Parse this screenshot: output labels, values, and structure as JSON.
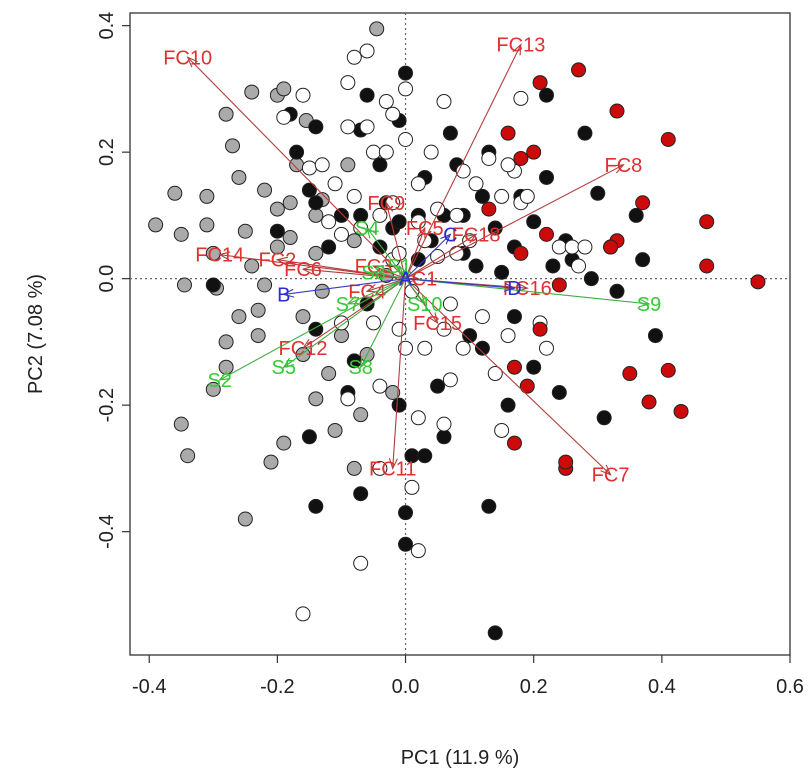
{
  "chart_data": {
    "type": "scatter",
    "title": "",
    "xlabel": "PC1 (11.9 %)",
    "ylabel": "PC2 (7.08 %)",
    "xlim": [
      -0.43,
      0.6
    ],
    "ylim": [
      -0.595,
      0.42
    ],
    "xticks": [
      "-0.4",
      "-0.2",
      "0.0",
      "0.2",
      "0.4",
      "0.6"
    ],
    "xtick_values": [
      -0.4,
      -0.2,
      0.0,
      0.2,
      0.4,
      0.6
    ],
    "yticks": [
      "-0.4",
      "-0.2",
      "0.0",
      "0.2",
      "0.4"
    ],
    "ytick_values": [
      -0.4,
      -0.2,
      0.0,
      0.2,
      0.4
    ],
    "reference_lines": {
      "x": 0,
      "y": 0,
      "style": "dotted"
    },
    "colors": {
      "grey": "#aaaaaa",
      "black": "#111111",
      "white": "#ffffff",
      "red": "#cc0a0a",
      "fc_arrow": "#b33c3c",
      "fc_label": "#e03030",
      "s_arrow": "#40b040",
      "s_label": "#33cc33",
      "class_arrow": "#3a3ac0",
      "class_label": "#2a2ad8"
    },
    "series": [
      {
        "color": "grey",
        "points": [
          [
            -0.39,
            0.085
          ],
          [
            -0.36,
            0.135
          ],
          [
            -0.35,
            0.07
          ],
          [
            -0.345,
            -0.01
          ],
          [
            -0.35,
            -0.23
          ],
          [
            -0.34,
            -0.28
          ],
          [
            -0.31,
            0.13
          ],
          [
            -0.31,
            0.085
          ],
          [
            -0.3,
            0.04
          ],
          [
            -0.295,
            -0.015
          ],
          [
            -0.3,
            -0.175
          ],
          [
            -0.28,
            -0.1
          ],
          [
            -0.28,
            -0.14
          ],
          [
            -0.28,
            0.26
          ],
          [
            -0.27,
            0.21
          ],
          [
            -0.26,
            0.16
          ],
          [
            -0.26,
            -0.06
          ],
          [
            -0.25,
            -0.38
          ],
          [
            -0.24,
            0.295
          ],
          [
            -0.25,
            0.075
          ],
          [
            -0.24,
            0.02
          ],
          [
            -0.23,
            -0.05
          ],
          [
            -0.23,
            -0.09
          ],
          [
            -0.22,
            0.14
          ],
          [
            -0.2,
            0.29
          ],
          [
            -0.2,
            0.11
          ],
          [
            -0.2,
            0.05
          ],
          [
            -0.19,
            0.3
          ],
          [
            -0.18,
            0.065
          ],
          [
            -0.17,
            0.18
          ],
          [
            -0.16,
            -0.06
          ],
          [
            -0.155,
            0.25
          ],
          [
            -0.14,
            -0.19
          ],
          [
            -0.14,
            0.04
          ],
          [
            -0.13,
            0.125
          ],
          [
            -0.13,
            -0.02
          ],
          [
            -0.12,
            -0.15
          ],
          [
            -0.11,
            -0.24
          ],
          [
            -0.1,
            -0.09
          ],
          [
            -0.09,
            0.18
          ],
          [
            -0.08,
            0.06
          ],
          [
            -0.07,
            -0.215
          ],
          [
            -0.06,
            -0.12
          ],
          [
            -0.045,
            0.395
          ],
          [
            -0.19,
            -0.26
          ],
          [
            -0.21,
            -0.29
          ],
          [
            -0.02,
            -0.18
          ],
          [
            -0.14,
            0.1
          ],
          [
            -0.18,
            0.12
          ],
          [
            -0.22,
            -0.01
          ],
          [
            -0.16,
            -0.12
          ],
          [
            -0.08,
            -0.3
          ],
          [
            -0.03,
            0.005
          ]
        ]
      },
      {
        "color": "black",
        "points": [
          [
            -0.3,
            -0.01
          ],
          [
            -0.18,
            0.26
          ],
          [
            -0.17,
            0.2
          ],
          [
            -0.15,
            0.14
          ],
          [
            -0.14,
            0.24
          ],
          [
            -0.14,
            0.12
          ],
          [
            -0.15,
            -0.25
          ],
          [
            -0.14,
            -0.08
          ],
          [
            -0.1,
            0.1
          ],
          [
            -0.09,
            -0.18
          ],
          [
            -0.07,
            0.235
          ],
          [
            -0.07,
            0.1
          ],
          [
            -0.08,
            -0.13
          ],
          [
            -0.06,
            0.29
          ],
          [
            -0.04,
            0.18
          ],
          [
            -0.03,
            0.12
          ],
          [
            -0.02,
            0.08
          ],
          [
            -0.01,
            0.25
          ],
          [
            -0.01,
            0.09
          ],
          [
            0.0,
            0.325
          ],
          [
            -0.01,
            -0.2
          ],
          [
            0.0,
            -0.37
          ],
          [
            0.01,
            -0.28
          ],
          [
            0.02,
            0.1
          ],
          [
            0.03,
            0.16
          ],
          [
            0.04,
            0.06
          ],
          [
            0.05,
            -0.17
          ],
          [
            0.06,
            0.1
          ],
          [
            0.07,
            0.23
          ],
          [
            0.09,
            0.04
          ],
          [
            0.1,
            -0.09
          ],
          [
            0.11,
            0.02
          ],
          [
            0.12,
            0.13
          ],
          [
            0.13,
            -0.36
          ],
          [
            0.14,
            -0.56
          ],
          [
            0.15,
            0.01
          ],
          [
            0.16,
            -0.2
          ],
          [
            0.17,
            -0.06
          ],
          [
            0.18,
            0.13
          ],
          [
            0.2,
            0.09
          ],
          [
            0.2,
            -0.14
          ],
          [
            0.22,
            0.29
          ],
          [
            0.22,
            0.16
          ],
          [
            0.24,
            -0.18
          ],
          [
            0.25,
            0.06
          ],
          [
            0.26,
            0.03
          ],
          [
            0.28,
            0.23
          ],
          [
            0.29,
            0.0
          ],
          [
            0.3,
            0.135
          ],
          [
            0.31,
            -0.22
          ],
          [
            0.32,
            0.05
          ],
          [
            0.36,
            0.1
          ],
          [
            0.37,
            0.03
          ],
          [
            0.39,
            -0.09
          ],
          [
            0.33,
            -0.02
          ],
          [
            -0.07,
            -0.34
          ],
          [
            -0.14,
            -0.36
          ],
          [
            0.0,
            -0.42
          ],
          [
            0.03,
            -0.28
          ],
          [
            0.06,
            -0.25
          ],
          [
            0.09,
            0.1
          ],
          [
            0.14,
            0.08
          ],
          [
            0.13,
            0.2
          ],
          [
            -0.2,
            0.075
          ],
          [
            -0.04,
            0.05
          ],
          [
            0.02,
            0.03
          ],
          [
            0.23,
            0.02
          ],
          [
            0.08,
            0.18
          ],
          [
            -0.06,
            -0.04
          ],
          [
            -0.12,
            0.05
          ],
          [
            0.17,
            0.05
          ],
          [
            0.12,
            -0.11
          ]
        ]
      },
      {
        "color": "white",
        "points": [
          [
            -0.19,
            0.255
          ],
          [
            -0.16,
            0.29
          ],
          [
            -0.15,
            0.175
          ],
          [
            -0.12,
            0.09
          ],
          [
            -0.11,
            0.15
          ],
          [
            -0.1,
            0.07
          ],
          [
            -0.09,
            -0.19
          ],
          [
            -0.1,
            -0.07
          ],
          [
            -0.09,
            0.24
          ],
          [
            -0.08,
            0.13
          ],
          [
            -0.07,
            0.08
          ],
          [
            -0.06,
            0.24
          ],
          [
            -0.05,
            0.2
          ],
          [
            -0.05,
            -0.07
          ],
          [
            -0.04,
            -0.17
          ],
          [
            -0.04,
            -0.3
          ],
          [
            -0.03,
            0.28
          ],
          [
            -0.03,
            0.2
          ],
          [
            -0.02,
            0.12
          ],
          [
            -0.02,
            0.03
          ],
          [
            -0.01,
            0.04
          ],
          [
            -0.01,
            -0.08
          ],
          [
            0.0,
            0.22
          ],
          [
            0.0,
            -0.11
          ],
          [
            0.01,
            -0.02
          ],
          [
            0.01,
            -0.33
          ],
          [
            0.02,
            0.15
          ],
          [
            0.02,
            0.09
          ],
          [
            0.02,
            -0.22
          ],
          [
            0.03,
            -0.11
          ],
          [
            0.03,
            0.06
          ],
          [
            0.04,
            0.2
          ],
          [
            0.05,
            0.11
          ],
          [
            0.05,
            0.035
          ],
          [
            0.06,
            -0.08
          ],
          [
            0.06,
            -0.23
          ],
          [
            0.07,
            -0.04
          ],
          [
            0.08,
            0.1
          ],
          [
            0.08,
            0.04
          ],
          [
            0.09,
            -0.11
          ],
          [
            0.09,
            0.17
          ],
          [
            0.1,
            0.06
          ],
          [
            0.11,
            0.15
          ],
          [
            0.12,
            -0.06
          ],
          [
            0.13,
            0.19
          ],
          [
            0.14,
            -0.15
          ],
          [
            0.15,
            0.13
          ],
          [
            0.15,
            -0.24
          ],
          [
            0.16,
            -0.09
          ],
          [
            0.17,
            0.17
          ],
          [
            0.18,
            0.12
          ],
          [
            0.18,
            0.285
          ],
          [
            0.19,
            0.13
          ],
          [
            0.21,
            -0.07
          ],
          [
            0.22,
            -0.11
          ],
          [
            0.24,
            0.05
          ],
          [
            0.26,
            0.05
          ],
          [
            0.27,
            0.02
          ],
          [
            0.28,
            0.05
          ],
          [
            -0.07,
            -0.45
          ],
          [
            -0.16,
            -0.53
          ],
          [
            0.02,
            -0.43
          ],
          [
            -0.13,
            0.18
          ],
          [
            0.0,
            0.3
          ],
          [
            -0.08,
            0.35
          ],
          [
            -0.09,
            0.31
          ],
          [
            -0.06,
            0.36
          ],
          [
            -0.02,
            0.26
          ],
          [
            0.06,
            0.28
          ],
          [
            0.16,
            0.18
          ],
          [
            -0.04,
            0.1
          ],
          [
            0.07,
            -0.16
          ]
        ]
      },
      {
        "color": "red",
        "points": [
          [
            0.55,
            -0.005
          ],
          [
            0.47,
            0.09
          ],
          [
            0.47,
            0.02
          ],
          [
            0.43,
            -0.21
          ],
          [
            0.41,
            0.22
          ],
          [
            0.41,
            -0.145
          ],
          [
            0.38,
            -0.195
          ],
          [
            0.37,
            0.12
          ],
          [
            0.35,
            -0.15
          ],
          [
            0.33,
            0.06
          ],
          [
            0.32,
            0.05
          ],
          [
            0.33,
            0.265
          ],
          [
            0.27,
            0.33
          ],
          [
            0.25,
            -0.3
          ],
          [
            0.25,
            -0.29
          ],
          [
            0.24,
            -0.01
          ],
          [
            0.22,
            0.07
          ],
          [
            0.21,
            0.31
          ],
          [
            0.2,
            0.2
          ],
          [
            0.19,
            -0.17
          ],
          [
            0.18,
            0.19
          ],
          [
            0.18,
            0.04
          ],
          [
            0.17,
            -0.14
          ],
          [
            0.16,
            0.23
          ],
          [
            0.17,
            -0.26
          ],
          [
            0.21,
            -0.08
          ],
          [
            0.13,
            0.11
          ]
        ]
      }
    ],
    "vectors": [
      {
        "group": "fc",
        "label": "FC10",
        "x": -0.34,
        "y": 0.35
      },
      {
        "group": "fc",
        "label": "FC13",
        "x": 0.18,
        "y": 0.37
      },
      {
        "group": "fc",
        "label": "FC8",
        "x": 0.34,
        "y": 0.18
      },
      {
        "group": "fc",
        "label": "FC14",
        "x": -0.29,
        "y": 0.038
      },
      {
        "group": "fc",
        "label": "FC2",
        "x": -0.2,
        "y": 0.03
      },
      {
        "group": "fc",
        "label": "FC6",
        "x": -0.16,
        "y": 0.015
      },
      {
        "group": "fc",
        "label": "FC3",
        "x": -0.05,
        "y": 0.02
      },
      {
        "group": "fc",
        "label": "FC9",
        "x": -0.03,
        "y": 0.12
      },
      {
        "group": "fc",
        "label": "FC5",
        "x": 0.03,
        "y": 0.08
      },
      {
        "group": "fc",
        "label": "FC18",
        "x": 0.11,
        "y": 0.07
      },
      {
        "group": "fc",
        "label": "FC4",
        "x": -0.06,
        "y": -0.02
      },
      {
        "group": "fc",
        "label": "FC1",
        "x": 0.02,
        "y": 0.0
      },
      {
        "group": "fc",
        "label": "FC16",
        "x": 0.19,
        "y": -0.015
      },
      {
        "group": "fc",
        "label": "FC15",
        "x": 0.05,
        "y": -0.07
      },
      {
        "group": "fc",
        "label": "FC12",
        "x": -0.16,
        "y": -0.11
      },
      {
        "group": "fc",
        "label": "FC11",
        "x": -0.02,
        "y": -0.3
      },
      {
        "group": "fc",
        "label": "FC7",
        "x": 0.32,
        "y": -0.31
      },
      {
        "group": "s",
        "label": "S2",
        "x": -0.29,
        "y": -0.16
      },
      {
        "group": "s",
        "label": "S5",
        "x": -0.19,
        "y": -0.14
      },
      {
        "group": "s",
        "label": "S8",
        "x": -0.07,
        "y": -0.14
      },
      {
        "group": "s",
        "label": "S7",
        "x": -0.09,
        "y": -0.04
      },
      {
        "group": "s",
        "label": "S4",
        "x": -0.06,
        "y": 0.08
      },
      {
        "group": "s",
        "label": "S3",
        "x": -0.05,
        "y": 0.01
      },
      {
        "group": "s",
        "label": "S1",
        "x": -0.01,
        "y": 0.02
      },
      {
        "group": "s",
        "label": "S10",
        "x": 0.03,
        "y": -0.04
      },
      {
        "group": "s",
        "label": "S9",
        "x": 0.38,
        "y": -0.04
      },
      {
        "group": "class",
        "label": "A",
        "x": 0.0,
        "y": 0.0
      },
      {
        "group": "class",
        "label": "B",
        "x": -0.19,
        "y": -0.025
      },
      {
        "group": "class",
        "label": "C",
        "x": 0.07,
        "y": 0.07
      },
      {
        "group": "class",
        "label": "D",
        "x": 0.17,
        "y": -0.015
      }
    ]
  }
}
